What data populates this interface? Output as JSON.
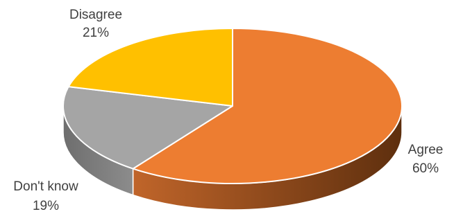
{
  "chart_data": {
    "type": "pie",
    "style": "3d",
    "title": "",
    "categories": [
      "Agree",
      "Don't know",
      "Disagree"
    ],
    "values": [
      60,
      19,
      21
    ],
    "value_labels": [
      "60%",
      "19%",
      "21%"
    ],
    "colors": [
      "#ED7D31",
      "#A5A5A5",
      "#FFC000"
    ],
    "side_colors": [
      "#8B4513",
      "#7F7F7F",
      "#BF9000"
    ],
    "legend": "none"
  }
}
